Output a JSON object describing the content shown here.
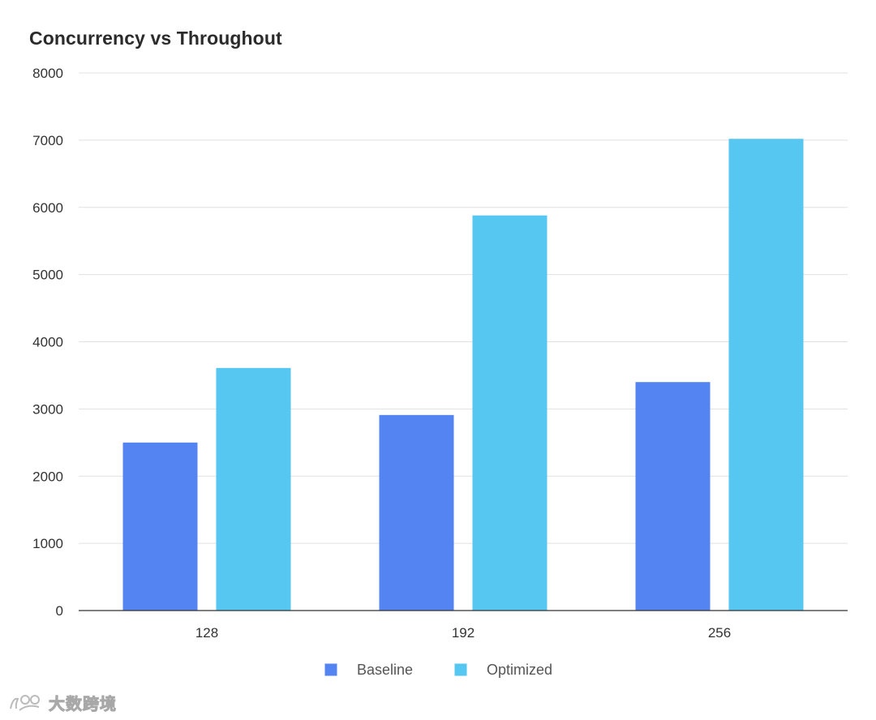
{
  "chart_data": {
    "type": "bar",
    "title": "Concurrency vs Throughout",
    "xlabel": "",
    "ylabel": "",
    "categories": [
      "128",
      "192",
      "256"
    ],
    "series": [
      {
        "name": "Baseline",
        "color": "#5484F1",
        "values": [
          2500,
          2910,
          3400
        ]
      },
      {
        "name": "Optimized",
        "color": "#55C7F0",
        "values": [
          3610,
          5880,
          7020
        ]
      }
    ],
    "ylim": [
      0,
      8000
    ],
    "yticks": [
      "0",
      "1000",
      "2000",
      "3000",
      "4000",
      "5000",
      "6000",
      "7000",
      "8000"
    ],
    "grid": true,
    "legend_position": "bottom-center"
  },
  "watermark": {
    "text": "大数跨境",
    "icon": "brand-logo-icon"
  },
  "colors": {
    "gridline": "#e0e0e0",
    "axis": "#333333"
  }
}
